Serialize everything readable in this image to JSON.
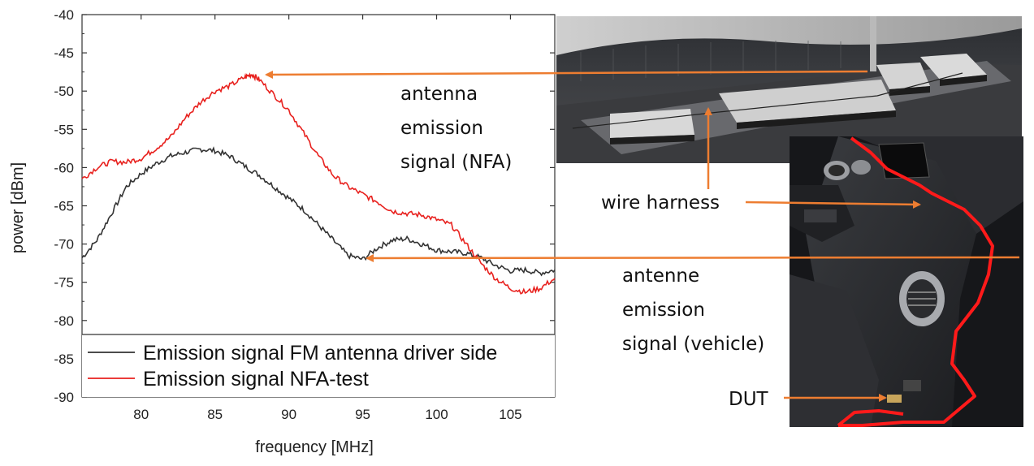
{
  "chart_data": {
    "type": "line",
    "xlabel": "frequency [MHz]",
    "ylabel": "power [dBm]",
    "xlim": [
      76,
      108
    ],
    "ylim": [
      -90,
      -40
    ],
    "xticks": [
      "80",
      "85",
      "90",
      "95",
      "100",
      "105"
    ],
    "yticks": [
      "-40",
      "-45",
      "-50",
      "-55",
      "-60",
      "-65",
      "-70",
      "-75",
      "-80",
      "-85",
      "-90"
    ],
    "grid": false,
    "legend_position": "bottom",
    "series": [
      {
        "name": "Emission signal FM antenna driver side",
        "color": "#333333",
        "x": [
          76,
          77,
          78,
          79,
          80,
          81,
          82,
          83,
          84,
          85,
          86,
          87,
          88,
          89,
          90,
          91,
          92,
          93,
          94,
          95,
          96,
          97,
          98,
          99,
          100,
          101,
          102,
          103,
          104,
          105,
          106,
          107,
          108
        ],
        "y": [
          -71.8,
          -69.5,
          -66,
          -62.5,
          -60.8,
          -59.5,
          -58.5,
          -58,
          -57.6,
          -57.8,
          -58.5,
          -59.8,
          -61,
          -62.5,
          -64,
          -65.5,
          -67.5,
          -69.5,
          -71.5,
          -72,
          -70.5,
          -69.5,
          -69.3,
          -70,
          -70.8,
          -71,
          -71.2,
          -71.8,
          -72.8,
          -73.5,
          -73.4,
          -73.8,
          -73.4
        ]
      },
      {
        "name": "Emission signal NFA-test",
        "color": "#e8211e",
        "x": [
          76,
          77,
          78,
          79,
          80,
          81,
          82,
          83,
          84,
          85,
          86,
          87,
          87.5,
          88,
          89,
          90,
          91,
          92,
          93,
          94,
          95,
          96,
          97,
          98,
          99,
          100,
          101,
          102,
          103,
          104,
          105,
          106,
          107,
          108
        ],
        "y": [
          -61.5,
          -60,
          -59.2,
          -59.3,
          -58.8,
          -57.5,
          -56,
          -53.5,
          -51.5,
          -50,
          -49.3,
          -48.2,
          -47.8,
          -48.5,
          -50.5,
          -52.5,
          -55.5,
          -58.5,
          -61,
          -62.5,
          -63.5,
          -64.5,
          -65.7,
          -66,
          -66.2,
          -66.8,
          -67.5,
          -70,
          -72.5,
          -74.5,
          -75.8,
          -76.3,
          -75.8,
          -74.5
        ]
      }
    ]
  },
  "annotations": {
    "antenna_nfa": [
      "antenna",
      "emission",
      "signal (NFA)"
    ],
    "wire_harness": "wire harness",
    "antenne_vehicle": [
      "antenne",
      "emission",
      "signal (vehicle)"
    ],
    "dut": "DUT"
  },
  "colors": {
    "arrow": "#ed7d31",
    "harness_trace": "#ff1a1a"
  }
}
